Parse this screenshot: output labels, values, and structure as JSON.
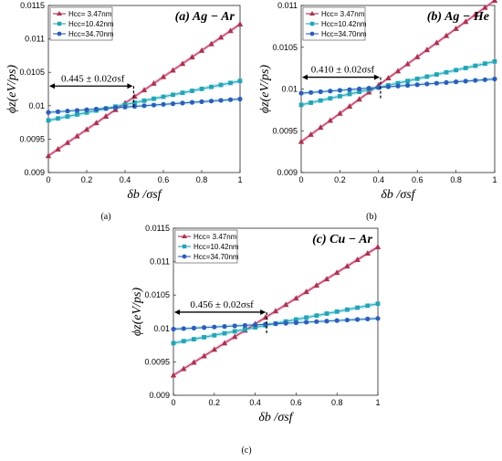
{
  "figure": {
    "chart_data": [
      {
        "type": "line",
        "panel": "a",
        "title": "(a) Ag − Ar",
        "xlabel": "δb /σsf",
        "ylabel": "ϕz(eV/ps)",
        "caption": "(a)",
        "xlim": [
          0,
          1
        ],
        "ylim": [
          0.009,
          0.0115
        ],
        "xticks": [
          "0",
          "0.2",
          "0.4",
          "0.6",
          "0.8",
          "1"
        ],
        "yticks": [
          "0.009",
          "0.0095",
          "0.01",
          "0.0105",
          "0.011",
          "0.0115"
        ],
        "legend_position": "top-left",
        "annotation": "0.445 ± 0.02σsf",
        "crossing_x": 0.445,
        "crossing_y": 0.01013,
        "series": [
          {
            "name": "Hcc= 3.47nm",
            "marker": "triangle",
            "color": "#a8344e",
            "start": 0.00925,
            "end": 0.01122
          },
          {
            "name": "Hcc=10.42nm",
            "marker": "square",
            "color": "#27a3b4",
            "start": 0.00978,
            "end": 0.01037
          },
          {
            "name": "Hcc=34.70nm",
            "marker": "circle",
            "color": "#2f5cb8",
            "start": 0.0099,
            "end": 0.0101
          }
        ]
      },
      {
        "type": "line",
        "panel": "b",
        "title": "(b) Ag − He",
        "xlabel": "δb /σsf",
        "ylabel": "ϕz(eV/ps)",
        "caption": "(b)",
        "xlim": [
          0,
          1
        ],
        "ylim": [
          0.009,
          0.011
        ],
        "xticks": [
          "0",
          "0.2",
          "0.4",
          "0.6",
          "0.8",
          "1"
        ],
        "yticks": [
          "0.009",
          "0.0095",
          "0.01",
          "0.0105",
          "0.011"
        ],
        "legend_position": "top-left",
        "annotation": "0.410 ± 0.02σsf",
        "crossing_x": 0.41,
        "crossing_y": 0.01001,
        "series": [
          {
            "name": "Hcc= 3.47nm",
            "marker": "triangle",
            "color": "#a8344e",
            "start": 0.00937,
            "end": 0.01106
          },
          {
            "name": "Hcc=10.42nm",
            "marker": "square",
            "color": "#27a3b4",
            "start": 0.00981,
            "end": 0.01033
          },
          {
            "name": "Hcc=34.70nm",
            "marker": "circle",
            "color": "#2f5cb8",
            "start": 0.00995,
            "end": 0.01012
          }
        ]
      },
      {
        "type": "line",
        "panel": "c",
        "title": "(c) Cu − Ar",
        "xlabel": "δb /σsf",
        "ylabel": "ϕz(eV/ps)",
        "caption": "(c)",
        "xlim": [
          0,
          1
        ],
        "ylim": [
          0.009,
          0.0115
        ],
        "xticks": [
          "0",
          "0.2",
          "0.4",
          "0.6",
          "0.8",
          "1"
        ],
        "yticks": [
          "0.009",
          "0.0095",
          "0.01",
          "0.0105",
          "0.011",
          "0.0115"
        ],
        "legend_position": "top-left",
        "annotation": "0.456 ± 0.02σsf",
        "crossing_x": 0.456,
        "crossing_y": 0.01008,
        "series": [
          {
            "name": "Hcc= 3.47nm",
            "marker": "triangle",
            "color": "#a8344e",
            "start": 0.0093,
            "end": 0.01122
          },
          {
            "name": "Hcc=10.42nm",
            "marker": "square",
            "color": "#27a3b4",
            "start": 0.00978,
            "end": 0.01037
          },
          {
            "name": "Hcc=34.70nm",
            "marker": "circle",
            "color": "#2f5cb8",
            "start": 0.00999,
            "end": 0.01015
          }
        ]
      }
    ]
  }
}
